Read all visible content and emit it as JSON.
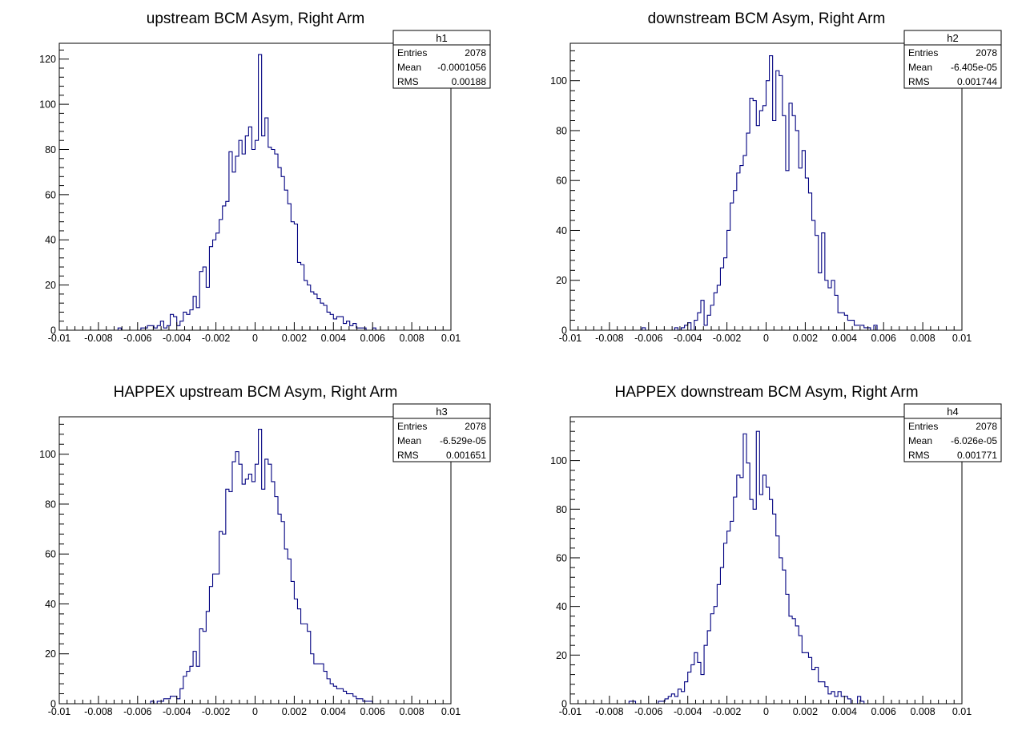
{
  "colors": {
    "histogram_line": "#000080",
    "frame": "#000000",
    "background": "#ffffff"
  },
  "chart_data": [
    {
      "type": "histogram",
      "title": "upstream BCM Asym, Right Arm",
      "xlim": [
        -0.01,
        0.01
      ],
      "ylim": [
        0,
        127
      ],
      "x_tick_labels": [
        "-0.01",
        "-0.008",
        "-0.006",
        "-0.004",
        "-0.002",
        "0",
        "0.002",
        "0.004",
        "0.006",
        "0.008",
        "0.01"
      ],
      "y_tick_labels": [
        "0",
        "20",
        "40",
        "60",
        "80",
        "100",
        "120"
      ],
      "y_ticks": [
        0,
        20,
        40,
        60,
        80,
        100,
        120
      ],
      "bin_range": [
        -0.007,
        0.007
      ],
      "values": [
        1,
        0,
        0,
        0,
        0,
        0,
        0,
        1,
        1,
        2,
        2,
        1,
        2,
        4,
        1,
        2,
        7,
        6,
        2,
        4,
        8,
        7,
        9,
        15,
        10,
        26,
        28,
        19,
        37,
        40,
        43,
        49,
        55,
        57,
        79,
        70,
        77,
        84,
        78,
        86,
        90,
        80,
        84,
        122,
        86,
        94,
        81,
        80,
        78,
        72,
        68,
        62,
        56,
        48,
        47,
        30,
        29,
        22,
        20,
        17,
        16,
        14,
        12,
        11,
        8,
        7,
        5,
        6,
        6,
        3,
        4,
        2,
        3,
        1,
        1,
        1,
        0,
        0,
        1,
        0,
        0,
        0,
        0,
        0
      ],
      "stats": {
        "name": "h1",
        "rows": [
          {
            "label": "Entries",
            "value": "2078"
          },
          {
            "label": "Mean",
            "value": "-0.0001056"
          },
          {
            "label": "RMS",
            "value": "0.00188"
          }
        ]
      }
    },
    {
      "type": "histogram",
      "title": "downstream BCM Asym, Right Arm",
      "xlim": [
        -0.01,
        0.01
      ],
      "ylim": [
        0,
        115
      ],
      "x_tick_labels": [
        "-0.01",
        "-0.008",
        "-0.006",
        "-0.004",
        "-0.002",
        "0",
        "0.002",
        "0.004",
        "0.006",
        "0.008",
        "0.01"
      ],
      "y_tick_labels": [
        "0",
        "20",
        "40",
        "60",
        "80",
        "100"
      ],
      "y_ticks": [
        0,
        20,
        40,
        60,
        80,
        100
      ],
      "bin_range": [
        -0.007,
        0.007
      ],
      "values": [
        0,
        0,
        0,
        0,
        1,
        0,
        0,
        0,
        0,
        0,
        0,
        0,
        0,
        0,
        1,
        0,
        1,
        2,
        3,
        0,
        4,
        7,
        12,
        2,
        6,
        10,
        15,
        18,
        25,
        29,
        40,
        51,
        56,
        63,
        66,
        70,
        79,
        93,
        92,
        82,
        88,
        90,
        100,
        110,
        84,
        104,
        102,
        86,
        64,
        91,
        86,
        80,
        65,
        72,
        61,
        55,
        44,
        38,
        23,
        39,
        20,
        17,
        20,
        14,
        7,
        7,
        6,
        4,
        4,
        2,
        2,
        2,
        1,
        1,
        0,
        2,
        0,
        0,
        0,
        0,
        0,
        0,
        0,
        0
      ],
      "stats": {
        "name": "h2",
        "rows": [
          {
            "label": "Entries",
            "value": "2078"
          },
          {
            "label": "Mean",
            "value": "-6.405e-05"
          },
          {
            "label": "RMS",
            "value": "0.001744"
          }
        ]
      }
    },
    {
      "type": "histogram",
      "title": "HAPPEX upstream BCM Asym, Right Arm",
      "xlim": [
        -0.01,
        0.01
      ],
      "ylim": [
        0,
        115
      ],
      "x_tick_labels": [
        "-0.01",
        "-0.008",
        "-0.006",
        "-0.004",
        "-0.002",
        "0",
        "0.002",
        "0.004",
        "0.006",
        "0.008",
        "0.01"
      ],
      "y_tick_labels": [
        "0",
        "20",
        "40",
        "60",
        "80",
        "100"
      ],
      "y_ticks": [
        0,
        20,
        40,
        60,
        80,
        100
      ],
      "bin_range": [
        -0.007,
        0.007
      ],
      "values": [
        0,
        0,
        0,
        0,
        0,
        0,
        0,
        0,
        0,
        0,
        1,
        0,
        1,
        1,
        2,
        2,
        3,
        3,
        2,
        6,
        11,
        13,
        15,
        21,
        15,
        30,
        29,
        37,
        47,
        52,
        52,
        69,
        68,
        86,
        85,
        97,
        101,
        96,
        88,
        90,
        92,
        89,
        96,
        110,
        86,
        98,
        96,
        89,
        83,
        76,
        73,
        62,
        58,
        49,
        42,
        38,
        32,
        32,
        29,
        20,
        16,
        16,
        16,
        13,
        10,
        8,
        7,
        6,
        6,
        5,
        4,
        4,
        3,
        2,
        2,
        1,
        1,
        1,
        0,
        0,
        0,
        0,
        0,
        0
      ],
      "stats": {
        "name": "h3",
        "rows": [
          {
            "label": "Entries",
            "value": "2078"
          },
          {
            "label": "Mean",
            "value": "-6.529e-05"
          },
          {
            "label": "RMS",
            "value": "0.001651"
          }
        ]
      }
    },
    {
      "type": "histogram",
      "title": "HAPPEX downstream BCM Asym, Right Arm",
      "xlim": [
        -0.01,
        0.01
      ],
      "ylim": [
        0,
        118
      ],
      "x_tick_labels": [
        "-0.01",
        "-0.008",
        "-0.006",
        "-0.004",
        "-0.002",
        "0",
        "0.002",
        "0.004",
        "0.006",
        "0.008",
        "0.01"
      ],
      "y_tick_labels": [
        "0",
        "20",
        "40",
        "60",
        "80",
        "100"
      ],
      "y_ticks": [
        0,
        20,
        40,
        60,
        80,
        100
      ],
      "bin_range": [
        -0.007,
        0.007
      ],
      "values": [
        1,
        1,
        0,
        0,
        0,
        0,
        0,
        0,
        0,
        1,
        1,
        2,
        3,
        4,
        3,
        6,
        5,
        9,
        13,
        16,
        21,
        17,
        12,
        24,
        30,
        37,
        40,
        49,
        56,
        66,
        71,
        75,
        85,
        94,
        93,
        111,
        99,
        84,
        80,
        112,
        86,
        94,
        89,
        84,
        78,
        69,
        60,
        55,
        45,
        36,
        35,
        32,
        28,
        21,
        21,
        19,
        14,
        15,
        9,
        9,
        7,
        4,
        5,
        3,
        5,
        3,
        3,
        2,
        0,
        0,
        3,
        1,
        0,
        0,
        0,
        0,
        0,
        0,
        0,
        0,
        0,
        0,
        0,
        0
      ],
      "stats": {
        "name": "h4",
        "rows": [
          {
            "label": "Entries",
            "value": "2078"
          },
          {
            "label": "Mean",
            "value": "-6.026e-05"
          },
          {
            "label": "RMS",
            "value": "0.001771"
          }
        ]
      }
    }
  ]
}
